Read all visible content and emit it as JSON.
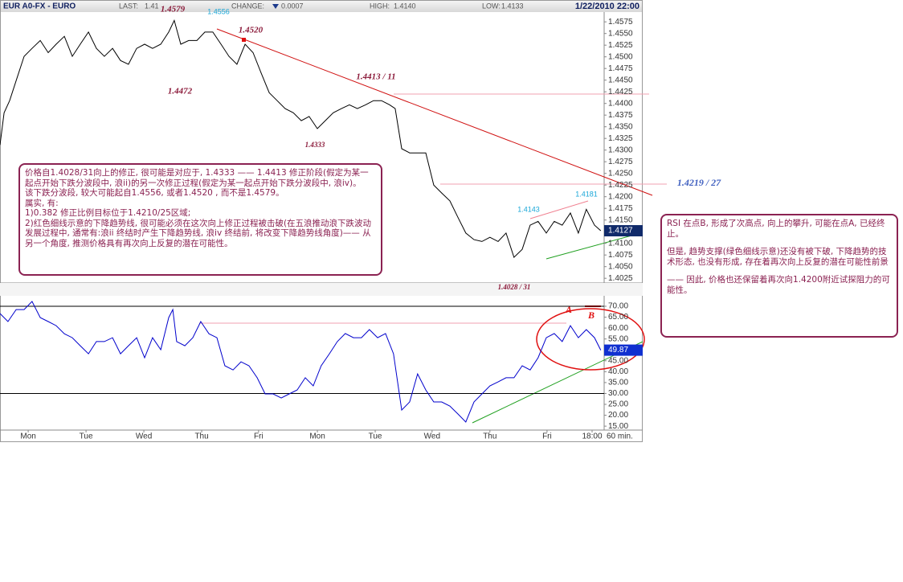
{
  "header": {
    "title": "EUR A0-FX - EURO",
    "last_label": "LAST:",
    "last": "1.41",
    "change_label": "CHANGE:",
    "change": "0.0007",
    "high_label": "HIGH:",
    "high": "1.4140",
    "low_label": "LOW:",
    "low": "1.4133",
    "datetime": "1/22/2010 22:00"
  },
  "chart_data": [
    {
      "type": "line",
      "color": "#000000",
      "x": [
        0,
        1.7,
        4,
        6.7,
        10,
        13.3,
        16.7,
        20,
        23.3,
        26.7,
        30,
        33.3,
        36.7,
        40,
        43.3,
        46.7,
        50,
        53.3,
        56.7,
        60,
        63.3,
        66.7,
        70,
        72.3,
        75,
        78.3,
        81.7,
        85,
        88.3,
        91.7,
        95,
        98.3,
        101.7,
        105,
        108.3,
        111.7,
        115,
        118.3,
        121.7,
        125,
        128.3,
        131.7,
        135,
        138.3,
        141.7,
        145,
        148.3,
        151.7,
        155,
        158.3,
        161.7,
        164,
        166.7,
        170,
        173.3,
        176.7,
        180,
        183.3,
        186.7,
        190,
        193.3,
        196.7,
        200,
        203.3,
        206.7,
        210,
        213.3,
        216.7,
        220,
        223.3,
        226.7,
        230,
        233.3,
        236.7,
        240,
        243.3,
        246.7,
        249.3
      ],
      "values": [
        1.4311,
        1.438,
        1.4406,
        1.4449,
        1.4501,
        1.4518,
        1.4535,
        1.4509,
        1.4527,
        1.4544,
        1.4501,
        1.4527,
        1.4553,
        1.4518,
        1.4501,
        1.4518,
        1.4492,
        1.4484,
        1.4518,
        1.4527,
        1.4518,
        1.4527,
        1.4553,
        1.4578,
        1.4527,
        1.4535,
        1.4535,
        1.4553,
        1.4553,
        1.4527,
        1.4501,
        1.4484,
        1.4527,
        1.4509,
        1.4466,
        1.4423,
        1.4406,
        1.4389,
        1.438,
        1.4363,
        1.4372,
        1.4346,
        1.4363,
        1.438,
        1.4389,
        1.4397,
        1.4389,
        1.4397,
        1.4406,
        1.4406,
        1.4397,
        1.4389,
        1.4303,
        1.4294,
        1.4294,
        1.4294,
        1.4225,
        1.4208,
        1.4191,
        1.4156,
        1.4122,
        1.4108,
        1.4104,
        1.4113,
        1.4104,
        1.4122,
        1.407,
        1.4087,
        1.4139,
        1.4147,
        1.4122,
        1.4147,
        1.4139,
        1.4165,
        1.4122,
        1.4173,
        1.4139,
        1.4127
      ],
      "xlim": [
        0,
        250.7
      ],
      "ylim": [
        1.4015,
        1.4596
      ],
      "yticks": [
        1.4025,
        {
          "value": 1.405,
          "label": "1.4050"
        },
        1.4075,
        {
          "value": 1.41,
          "label": "1.4100"
        },
        {
          "value": 1.415,
          "label": "1.4150"
        },
        1.4175,
        {
          "value": 1.42,
          "label": "1.4200"
        },
        1.4225,
        {
          "value": 1.425,
          "label": "1.4250"
        },
        1.4275,
        {
          "value": 1.43,
          "label": "1.4300"
        },
        1.4325,
        {
          "value": 1.435,
          "label": "1.4350"
        },
        1.4375,
        {
          "value": 1.44,
          "label": "1.4400"
        },
        1.4425,
        {
          "value": 1.445,
          "label": "1.4450"
        },
        1.4475,
        {
          "value": 1.45,
          "label": "1.4500"
        },
        1.4525,
        {
          "value": 1.455,
          "label": "1.4550"
        },
        1.4575
      ]
    },
    {
      "type": "line",
      "color": "#0000cc",
      "x": [
        0,
        3.3,
        6.7,
        10,
        13.3,
        16.7,
        20,
        23.3,
        26.7,
        30,
        33.3,
        36.7,
        40,
        43.3,
        46.7,
        50,
        53.3,
        56.7,
        60,
        63.3,
        66.7,
        70,
        71.7,
        73.3,
        76.7,
        80,
        83.3,
        86.7,
        90,
        93.3,
        96.7,
        100,
        103.3,
        106.7,
        110,
        113.3,
        116.7,
        120,
        123.3,
        126.7,
        130,
        133.3,
        136.7,
        140,
        143.3,
        146.7,
        150,
        153.3,
        156.7,
        160,
        163.3,
        166.7,
        170,
        173.3,
        176.7,
        180,
        183.3,
        186.7,
        190,
        193.3,
        196.7,
        200,
        203.3,
        206.7,
        210,
        213.3,
        216.7,
        220,
        223.3,
        226.7,
        230,
        233.3,
        236.7,
        240,
        243.3,
        246.7,
        249.3
      ],
      "values": [
        66.7,
        63.0,
        68.5,
        68.5,
        72.2,
        64.8,
        63.0,
        61.1,
        57.4,
        55.6,
        51.9,
        48.2,
        53.8,
        53.8,
        55.6,
        48.2,
        51.9,
        55.6,
        46.4,
        55.6,
        50.1,
        64.8,
        68.5,
        53.8,
        51.9,
        55.6,
        63.0,
        57.4,
        55.6,
        42.7,
        40.8,
        44.5,
        42.7,
        37.2,
        29.8,
        29.8,
        27.9,
        29.8,
        31.6,
        37.2,
        33.5,
        42.7,
        48.2,
        53.8,
        57.5,
        55.6,
        55.6,
        59.3,
        55.6,
        57.5,
        48.2,
        22.4,
        26.1,
        39,
        31.6,
        26.1,
        26.1,
        24.2,
        20.6,
        16.9,
        26.1,
        29.8,
        33.5,
        35.3,
        37.2,
        37.2,
        42.7,
        40.8,
        46.4,
        55.6,
        57.5,
        53.8,
        61.1,
        55.6,
        59.3,
        55.6,
        49.87
      ],
      "xlim": [
        0,
        250.7
      ],
      "ylim": [
        13.2,
        74.8
      ],
      "yticks": [
        {
          "value": 15,
          "label": "15.00"
        },
        {
          "value": 20,
          "label": "20.00"
        },
        {
          "value": 25,
          "label": "25.00"
        },
        {
          "value": 30,
          "label": "30.00"
        },
        {
          "value": 35,
          "label": "35.00"
        },
        {
          "value": 40,
          "label": "40.00"
        },
        {
          "value": 45,
          "label": "45.00"
        },
        {
          "value": 55,
          "label": "55.00"
        },
        {
          "value": 60,
          "label": "60.00"
        },
        {
          "value": 65,
          "label": "65.00"
        },
        {
          "value": 70,
          "label": "70.00"
        }
      ],
      "ref_lines": [
        70,
        30
      ],
      "xticks": [
        {
          "value": 11.7,
          "label": "Mon"
        },
        {
          "value": 35.7,
          "label": "Tue"
        },
        {
          "value": 59.7,
          "label": "Wed"
        },
        {
          "value": 83.7,
          "label": "Thu"
        },
        {
          "value": 107.3,
          "label": "Fri"
        },
        {
          "value": 131.7,
          "label": "Mon"
        },
        {
          "value": 155.7,
          "label": "Tue"
        },
        {
          "value": 179.3,
          "label": "Wed"
        },
        {
          "value": 203.3,
          "label": "Thu"
        },
        {
          "value": 227,
          "label": "Fri"
        },
        {
          "value": 245.7,
          "label": "18:00"
        }
      ],
      "x_unit_label": "60 min."
    }
  ],
  "annotations": {
    "high": "1.4579",
    "alt_high": "1.4556",
    "wave_top": "1.4520",
    "mid": "1.4472",
    "trend": "1.4413 / 11",
    "low_mid": "1.4333",
    "target": "1.4219 / 27",
    "peak2": "1.4181",
    "peak1": "1.4143",
    "low": "1.4028 / 31",
    "point_a": "A",
    "point_b": "B"
  },
  "notes": {
    "left": [
      "价格自1.4028/31向上的修正, 很可能是对应于, 1.4333 —— 1.4413 修正阶段(假定为某一起点开始下跌分波段中, 浪ii)的另一次修正过程(假定为某一起点开始下跌分波段中, 浪iv)。",
      "该下跌分波段, 较大可能起自1.4556, 或者1.4520 , 而不是1.4579。",
      "属实, 有:",
      "1)0.382 修正比例目标位于1.4210/25区域;",
      "2)红色细线示意的下降趋势线, 很可能必须在这次向上修正过程被击破(在五浪推动浪下跌波动发展过程中, 通常有:浪ii 终结时产生下降趋势线, 浪iv 终结前, 将改变下降趋势线角度)—— 从另一个角度, 推测价格具有再次向上反复的潜在可能性。"
    ],
    "right": [
      "RSI 在点B, 形成了次高点, 向上的攀升, 可能在点A, 已经终止。",
      "但是, 趋势支撑(绿色细线示意)还没有被下破, 下降趋势的技术形态, 也没有形成, 存在着再次向上反复的潜在可能性前景",
      "—— 因此, 价格也还保留着再次向1.4200附近试探阻力的可能性。"
    ]
  }
}
